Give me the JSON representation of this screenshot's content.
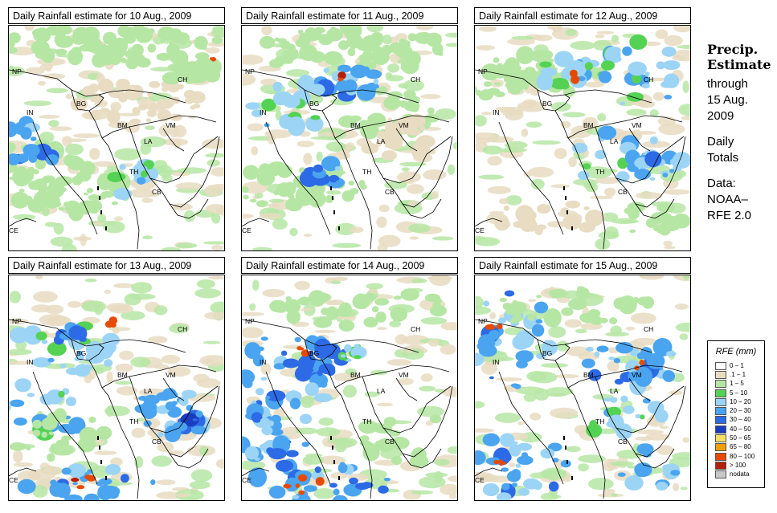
{
  "panels": [
    {
      "title": "Daily Rainfall estimate for  10 Aug., 2009"
    },
    {
      "title": "Daily Rainfall estimate for  11 Aug., 2009"
    },
    {
      "title": "Daily Rainfall estimate for  12 Aug., 2009"
    },
    {
      "title": "Daily Rainfall estimate for  13 Aug., 2009"
    },
    {
      "title": "Daily Rainfall estimate for  14 Aug., 2009"
    },
    {
      "title": "Daily Rainfall estimate for  15 Aug., 2009"
    }
  ],
  "country_labels": [
    "NP",
    "IN",
    "BG",
    "CH",
    "BM",
    "VM",
    "LA",
    "TH",
    "CB",
    "CE"
  ],
  "side": {
    "title_line1": "Precip.",
    "title_line2": "Estimate",
    "through": "through",
    "date_line1": "15 Aug.",
    "date_line2": "2009",
    "daily1": "Daily",
    "daily2": "Totals",
    "data1": "Data:",
    "data2": "NOAA–",
    "data3": "RFE 2.0"
  },
  "legend": {
    "title": "RFE (mm)",
    "items": [
      {
        "label": "0 – 1",
        "color": "#ffffff"
      },
      {
        "label": ".1 – 1",
        "color": "#e8dcc2"
      },
      {
        "label": "1 – 5",
        "color": "#b6e6a4"
      },
      {
        "label": "5 – 10",
        "color": "#54d254"
      },
      {
        "label": "10 – 20",
        "color": "#9cd4f6"
      },
      {
        "label": "20 – 30",
        "color": "#4aa4f0"
      },
      {
        "label": "30 – 40",
        "color": "#2c6ae6"
      },
      {
        "label": "40 – 50",
        "color": "#1a3cbe"
      },
      {
        "label": "50 – 65",
        "color": "#f6e064"
      },
      {
        "label": "65 – 80",
        "color": "#f0a000"
      },
      {
        "label": "80 – 100",
        "color": "#e64a00"
      },
      {
        "label": "> 100",
        "color": "#b4200a"
      },
      {
        "label": "nodata",
        "color": "#c8c8c8"
      }
    ]
  }
}
